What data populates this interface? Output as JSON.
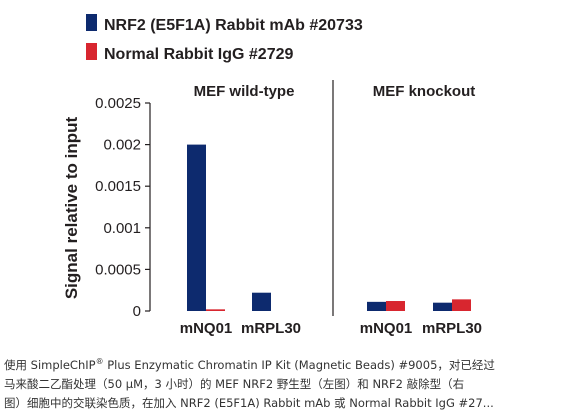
{
  "chart_data": {
    "type": "bar",
    "ylabel": "Signal relative to input",
    "ylim": [
      0,
      0.0025
    ],
    "yticks": [
      "0.0025",
      "0.002",
      "0.0015",
      "0.001",
      "0.0005",
      "0"
    ],
    "ytick_values": [
      0.0025,
      0.002,
      0.0015,
      0.001,
      0.0005,
      0
    ],
    "legend_position": "top-left",
    "series": [
      {
        "name": "NRF2 (E5F1A) Rabbit mAb #20733",
        "color": "#0d2a6e"
      },
      {
        "name": "Normal Rabbit IgG #2729",
        "color": "#d8262f"
      }
    ],
    "panels": [
      {
        "title": "MEF wild-type",
        "categories": [
          "mNQ01",
          "mRPL30"
        ],
        "values": [
          [
            0.002,
            2e-05
          ],
          [
            0.00022,
            0.0
          ]
        ]
      },
      {
        "title": "MEF knockout",
        "categories": [
          "mNQ01",
          "mRPL30"
        ],
        "values": [
          [
            0.00011,
            0.00012
          ],
          [
            0.0001,
            0.00014
          ]
        ]
      }
    ]
  },
  "caption": {
    "line1_pre": "使用 SimpleChIP",
    "line1_reg": "®",
    "line1_post": " Plus Enzymatic Chromatin IP Kit (Magnetic Beads) #9005，对已经过",
    "line2": "马来酸二乙酯处理（50 µM，3 小时）的 MEF NRF2 野生型（左图）和 NRF2 敲除型（右",
    "line3": "图）细胞中的交联染色质，在加入 NRF2 (E5F1A) Rabbit mAb 或 Normal Rabbit IgG #27..."
  }
}
